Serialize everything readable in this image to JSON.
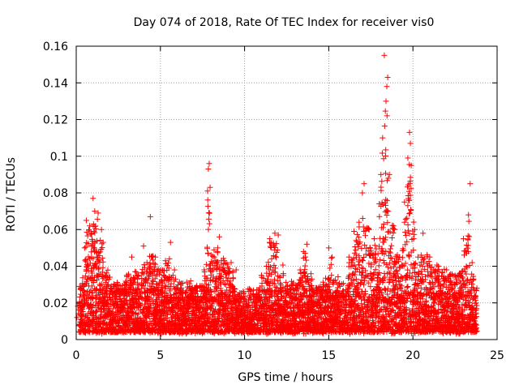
{
  "chart_data": {
    "type": "scatter",
    "title": "Day 074 of 2018, Rate Of TEC Index for receiver vis0",
    "xlabel": "GPS time / hours",
    "ylabel": "ROTI / TECUs",
    "xlim": [
      0,
      25
    ],
    "ylim": [
      0,
      0.16
    ],
    "xticks": [
      0,
      5,
      10,
      15,
      20,
      25
    ],
    "yticks": [
      0,
      0.02,
      0.04,
      0.06,
      0.08,
      0.1,
      0.12,
      0.14,
      0.16
    ],
    "xtick_labels": [
      "0",
      "5",
      "10",
      "15",
      "20",
      "25"
    ],
    "ytick_labels": [
      "0",
      "0.02",
      "0.04",
      "0.06",
      "0.08",
      "0.1",
      "0.12",
      "0.14",
      "0.16"
    ],
    "grid": true,
    "marker": "+",
    "color": "#ff0000",
    "series": [
      {
        "name": "vis0",
        "points": [
          [
            0.2,
            0.029
          ],
          [
            0.5,
            0.05
          ],
          [
            0.6,
            0.065
          ],
          [
            0.8,
            0.062
          ],
          [
            1.0,
            0.077
          ],
          [
            1.1,
            0.07
          ],
          [
            1.3,
            0.069
          ],
          [
            1.5,
            0.06
          ],
          [
            1.6,
            0.053
          ],
          [
            2.0,
            0.034
          ],
          [
            2.5,
            0.03
          ],
          [
            3.0,
            0.035
          ],
          [
            3.3,
            0.045
          ],
          [
            3.6,
            0.035
          ],
          [
            4.0,
            0.051
          ],
          [
            4.2,
            0.042
          ],
          [
            4.4,
            0.067
          ],
          [
            4.7,
            0.045
          ],
          [
            5.0,
            0.038
          ],
          [
            5.3,
            0.043
          ],
          [
            5.6,
            0.053
          ],
          [
            5.9,
            0.033
          ],
          [
            6.2,
            0.03
          ],
          [
            6.8,
            0.032
          ],
          [
            7.2,
            0.028
          ],
          [
            7.6,
            0.038
          ],
          [
            7.8,
            0.081
          ],
          [
            7.85,
            0.093
          ],
          [
            7.9,
            0.096
          ],
          [
            7.95,
            0.083
          ],
          [
            8.2,
            0.045
          ],
          [
            8.4,
            0.05
          ],
          [
            8.5,
            0.056
          ],
          [
            8.8,
            0.043
          ],
          [
            9.2,
            0.042
          ],
          [
            9.5,
            0.038
          ],
          [
            10.0,
            0.022
          ],
          [
            10.5,
            0.025
          ],
          [
            11.0,
            0.035
          ],
          [
            11.3,
            0.04
          ],
          [
            11.5,
            0.055
          ],
          [
            11.8,
            0.058
          ],
          [
            12.0,
            0.057
          ],
          [
            12.3,
            0.035
          ],
          [
            12.8,
            0.03
          ],
          [
            13.3,
            0.038
          ],
          [
            13.5,
            0.048
          ],
          [
            13.7,
            0.052
          ],
          [
            14.0,
            0.033
          ],
          [
            14.5,
            0.029
          ],
          [
            15.0,
            0.05
          ],
          [
            15.2,
            0.045
          ],
          [
            15.6,
            0.03
          ],
          [
            16.2,
            0.045
          ],
          [
            16.5,
            0.059
          ],
          [
            16.8,
            0.064
          ],
          [
            17.0,
            0.08
          ],
          [
            17.1,
            0.085
          ],
          [
            17.4,
            0.06
          ],
          [
            17.7,
            0.055
          ],
          [
            18.0,
            0.074
          ],
          [
            18.1,
            0.09
          ],
          [
            18.2,
            0.11
          ],
          [
            18.3,
            0.155
          ],
          [
            18.4,
            0.13
          ],
          [
            18.45,
            0.138
          ],
          [
            18.5,
            0.143
          ],
          [
            18.6,
            0.09
          ],
          [
            18.9,
            0.06
          ],
          [
            19.2,
            0.045
          ],
          [
            19.5,
            0.075
          ],
          [
            19.7,
            0.099
          ],
          [
            19.8,
            0.113
          ],
          [
            19.85,
            0.107
          ],
          [
            19.9,
            0.095
          ],
          [
            20.1,
            0.06
          ],
          [
            20.3,
            0.045
          ],
          [
            20.6,
            0.058
          ],
          [
            21.0,
            0.045
          ],
          [
            21.5,
            0.04
          ],
          [
            22.0,
            0.038
          ],
          [
            22.5,
            0.035
          ],
          [
            23.0,
            0.055
          ],
          [
            23.3,
            0.068
          ],
          [
            23.4,
            0.085
          ],
          [
            23.6,
            0.033
          ],
          [
            23.8,
            0.028
          ]
        ]
      }
    ]
  }
}
